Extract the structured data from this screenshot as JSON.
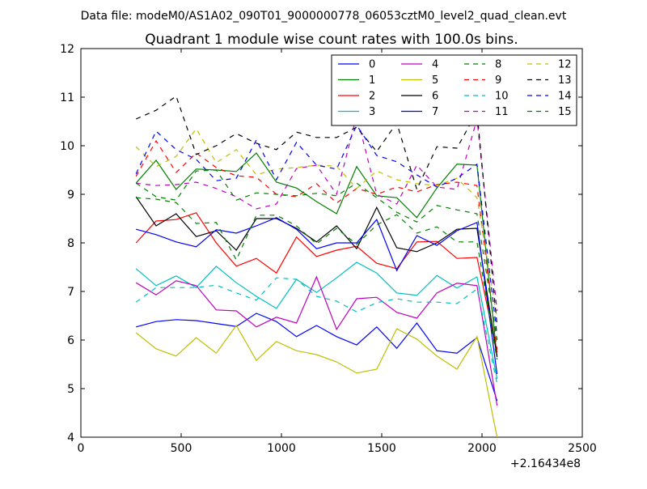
{
  "header": {
    "file_line": "Data file: modeM0/AS1A02_090T01_9000000778_06053cztM0_level2_quad_clean.evt"
  },
  "chart_data": {
    "type": "line",
    "title": "Quadrant 1 module wise count rates with 100.0s bins.",
    "xlabel": "",
    "ylabel": "",
    "x_offset_label": "+2.16434e8",
    "xlim": [
      0,
      2500
    ],
    "ylim": [
      4,
      12
    ],
    "xticks": [
      0,
      500,
      1000,
      1500,
      2000,
      2500
    ],
    "yticks": [
      4,
      5,
      6,
      7,
      8,
      9,
      10,
      11,
      12
    ],
    "xtick_labels": [
      "0",
      "500",
      "1000",
      "1500",
      "2000",
      "2500"
    ],
    "ytick_labels": [
      "4",
      "5",
      "6",
      "7",
      "8",
      "9",
      "10",
      "11",
      "12"
    ],
    "grid": false,
    "legend_position": "top-right",
    "x": [
      275,
      375,
      475,
      575,
      675,
      775,
      875,
      975,
      1075,
      1175,
      1275,
      1375,
      1475,
      1575,
      1675,
      1775,
      1875,
      1975,
      2075
    ],
    "series": [
      {
        "name": "0",
        "color": "#0000ff",
        "dash": "solid",
        "values": [
          6.27,
          6.38,
          6.42,
          6.4,
          6.34,
          6.28,
          6.55,
          6.38,
          6.07,
          6.3,
          6.07,
          5.9,
          6.27,
          5.83,
          6.35,
          5.78,
          5.73,
          6.05,
          4.75
        ]
      },
      {
        "name": "1",
        "color": "#008000",
        "dash": "solid",
        "values": [
          9.23,
          9.7,
          9.1,
          9.52,
          9.5,
          9.47,
          9.85,
          9.25,
          9.13,
          8.85,
          8.6,
          9.57,
          8.97,
          8.93,
          8.52,
          9.13,
          9.62,
          9.6,
          5.65
        ]
      },
      {
        "name": "2",
        "color": "#ff0000",
        "dash": "solid",
        "values": [
          8.0,
          8.45,
          8.48,
          8.62,
          8.0,
          7.52,
          7.68,
          7.38,
          8.12,
          7.72,
          7.85,
          7.93,
          7.58,
          7.47,
          8.02,
          8.03,
          7.68,
          7.7,
          5.75
        ]
      },
      {
        "name": "3",
        "color": "#00bfbf",
        "dash": "solid",
        "values": [
          7.47,
          7.12,
          7.32,
          7.08,
          7.52,
          7.18,
          6.9,
          6.65,
          7.25,
          6.98,
          7.28,
          7.6,
          7.38,
          6.97,
          6.92,
          7.33,
          7.07,
          7.3,
          5.2
        ]
      },
      {
        "name": "4",
        "color": "#bf00bf",
        "dash": "solid",
        "values": [
          7.18,
          6.93,
          7.22,
          7.12,
          6.62,
          6.6,
          6.27,
          6.47,
          6.35,
          7.3,
          6.22,
          6.85,
          6.88,
          6.57,
          6.45,
          6.97,
          7.17,
          7.12,
          4.65
        ]
      },
      {
        "name": "5",
        "color": "#bfbf00",
        "dash": "solid",
        "values": [
          6.15,
          5.82,
          5.67,
          6.05,
          5.73,
          6.3,
          5.58,
          5.97,
          5.78,
          5.7,
          5.55,
          5.32,
          5.4,
          6.23,
          6.02,
          5.67,
          5.4,
          6.07,
          4.0
        ]
      },
      {
        "name": "6",
        "color": "#000000",
        "dash": "solid",
        "values": [
          8.95,
          8.35,
          8.6,
          8.13,
          8.25,
          7.85,
          8.5,
          8.5,
          8.3,
          8.02,
          8.35,
          7.88,
          8.73,
          7.9,
          7.82,
          8.0,
          8.28,
          8.3,
          5.65
        ]
      },
      {
        "name": "7",
        "color": "#0000ff",
        "dash": "solid",
        "values": [
          8.28,
          8.17,
          8.02,
          7.92,
          8.27,
          8.2,
          8.35,
          8.52,
          8.28,
          7.88,
          8.0,
          8.0,
          8.48,
          7.43,
          8.15,
          7.95,
          8.25,
          8.42,
          5.3
        ]
      },
      {
        "name": "8",
        "color": "#008000",
        "dash": "dashed",
        "values": [
          8.93,
          8.9,
          8.83,
          8.4,
          8.42,
          7.65,
          8.57,
          8.57,
          8.35,
          7.98,
          8.3,
          7.97,
          8.37,
          8.58,
          8.2,
          8.33,
          8.02,
          8.02,
          5.6
        ]
      },
      {
        "name": "9",
        "color": "#ff0000",
        "dash": "dashed",
        "values": [
          9.37,
          10.1,
          9.45,
          9.85,
          9.55,
          9.38,
          9.35,
          9.0,
          8.95,
          9.22,
          8.82,
          9.12,
          9.0,
          9.15,
          9.05,
          9.2,
          9.25,
          9.18,
          5.8
        ]
      },
      {
        "name": "10",
        "color": "#00bfbf",
        "dash": "dashed",
        "values": [
          6.78,
          7.08,
          7.08,
          7.08,
          7.13,
          6.97,
          6.82,
          7.28,
          7.25,
          6.9,
          6.8,
          6.58,
          6.77,
          6.85,
          6.78,
          6.78,
          6.75,
          7.05,
          5.1
        ]
      },
      {
        "name": "11",
        "color": "#bf00bf",
        "dash": "dashed",
        "values": [
          9.23,
          9.18,
          9.2,
          9.25,
          9.12,
          8.95,
          8.7,
          8.8,
          9.53,
          9.6,
          9.0,
          10.62,
          9.0,
          8.8,
          9.6,
          9.15,
          9.1,
          10.55,
          6.6
        ]
      },
      {
        "name": "12",
        "color": "#bfbf00",
        "dash": "dashed",
        "values": [
          9.98,
          9.57,
          9.78,
          10.35,
          9.65,
          9.92,
          9.4,
          9.52,
          9.55,
          9.6,
          9.58,
          9.12,
          9.48,
          9.3,
          9.22,
          9.18,
          9.33,
          8.93,
          6.45
        ]
      },
      {
        "name": "13",
        "color": "#000000",
        "dash": "dashed",
        "values": [
          10.55,
          10.73,
          11.02,
          9.82,
          10.0,
          10.25,
          10.05,
          9.92,
          10.28,
          10.17,
          10.17,
          10.38,
          9.88,
          10.47,
          9.1,
          9.98,
          9.95,
          10.7,
          6.3
        ]
      },
      {
        "name": "14",
        "color": "#0000ff",
        "dash": "dashed",
        "values": [
          9.42,
          10.3,
          9.92,
          9.72,
          9.28,
          9.33,
          10.12,
          9.3,
          10.07,
          9.6,
          9.52,
          10.42,
          9.8,
          9.67,
          9.4,
          9.15,
          9.33,
          9.62,
          6.1
        ]
      },
      {
        "name": "15",
        "color": "#008000",
        "dash": "dashed",
        "values": [
          9.23,
          8.95,
          8.88,
          9.48,
          9.5,
          8.88,
          9.03,
          9.0,
          8.97,
          9.02,
          8.97,
          9.23,
          8.93,
          8.63,
          8.43,
          8.77,
          8.68,
          8.6,
          6.0
        ]
      }
    ]
  }
}
